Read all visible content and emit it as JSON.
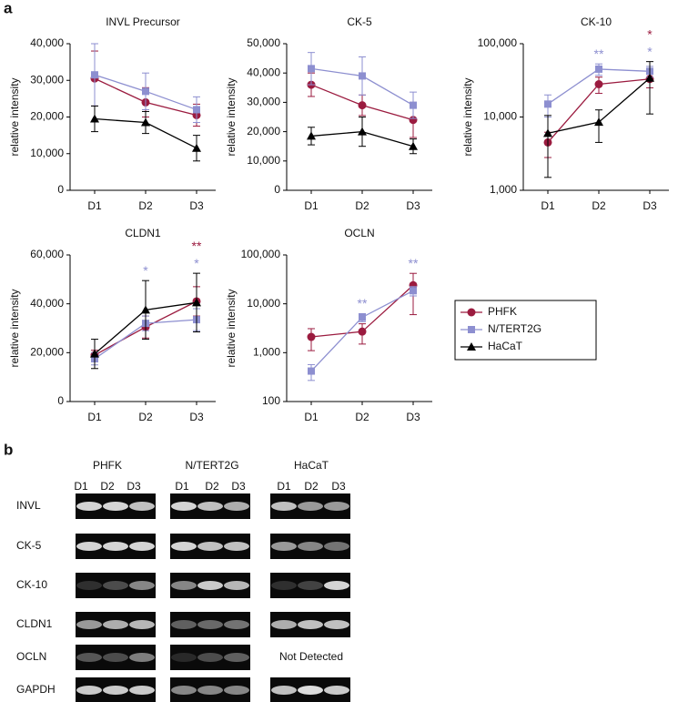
{
  "panel_labels": [
    "a",
    "b"
  ],
  "chart_data": [
    {
      "type": "line",
      "title": "INVL Precursor",
      "ylabel": "relative intensity",
      "categories": [
        "D1",
        "D2",
        "D3"
      ],
      "ylim": [
        0,
        40000
      ],
      "yticks": [
        0,
        {
          "value": 10000,
          "label": "10,000"
        },
        {
          "value": 20000,
          "label": "20,000"
        },
        {
          "value": 30000,
          "label": "30,000"
        },
        {
          "value": 40000,
          "label": "40,000"
        }
      ],
      "log_scale": false,
      "series": [
        {
          "name": "PHFK",
          "color": "#9b1b3f",
          "marker": "circle",
          "values": [
            30500,
            24000,
            20500
          ],
          "errors": [
            7500,
            4000,
            3000
          ]
        },
        {
          "name": "N/TERT2G",
          "color": "#8d8fd0",
          "marker": "square",
          "values": [
            31500,
            27000,
            22000
          ],
          "errors": [
            8500,
            5000,
            3500
          ]
        },
        {
          "name": "HaCaT",
          "color": "#000000",
          "marker": "triangle",
          "values": [
            19500,
            18500,
            11500
          ],
          "errors": [
            3500,
            3000,
            3500
          ]
        }
      ]
    },
    {
      "type": "line",
      "title": "CK-5",
      "ylabel": "relative intensity",
      "categories": [
        "D1",
        "D2",
        "D3"
      ],
      "ylim": [
        0,
        50000
      ],
      "yticks": [
        0,
        {
          "value": 10000,
          "label": "10,000"
        },
        {
          "value": 20000,
          "label": "20,000"
        },
        {
          "value": 30000,
          "label": "30,000"
        },
        {
          "value": 40000,
          "label": "40,000"
        },
        {
          "value": 50000,
          "label": "50,000"
        }
      ],
      "log_scale": false,
      "series": [
        {
          "name": "PHFK",
          "color": "#9b1b3f",
          "marker": "circle",
          "values": [
            36000,
            29000,
            24000
          ],
          "errors": [
            4000,
            3500,
            6000
          ]
        },
        {
          "name": "N/TERT2G",
          "color": "#8d8fd0",
          "marker": "square",
          "values": [
            41500,
            39000,
            29000
          ],
          "errors": [
            5500,
            6500,
            4500
          ]
        },
        {
          "name": "HaCaT",
          "color": "#000000",
          "marker": "triangle",
          "values": [
            18500,
            20000,
            15000
          ],
          "errors": [
            3000,
            5000,
            2500
          ]
        }
      ]
    },
    {
      "type": "line",
      "title": "CK-10",
      "ylabel": "relative intensity",
      "categories": [
        "D1",
        "D2",
        "D3"
      ],
      "ylim": [
        1000,
        100000
      ],
      "yticks": [
        {
          "value": 1000,
          "label": "1,000"
        },
        {
          "value": 10000,
          "label": "10,000"
        },
        {
          "value": 100000,
          "label": "100,000"
        }
      ],
      "log_scale": true,
      "series": [
        {
          "name": "PHFK",
          "color": "#9b1b3f",
          "marker": "circle",
          "values": [
            4500,
            28000,
            33000
          ],
          "errors": [
            1700,
            7000,
            8000
          ]
        },
        {
          "name": "N/TERT2G",
          "color": "#8d8fd0",
          "marker": "square",
          "values": [
            15000,
            45000,
            42000
          ],
          "errors": [
            5000,
            8000,
            7000
          ]
        },
        {
          "name": "HaCaT",
          "color": "#000000",
          "marker": "triangle",
          "values": [
            6000,
            8500,
            34000
          ],
          "errors": [
            4500,
            4000,
            23000
          ]
        }
      ],
      "annotations": [
        {
          "text": "**",
          "category": 1,
          "color": "#8d8fd0"
        },
        {
          "text": "*",
          "category": 2,
          "color": "#8d8fd0"
        },
        {
          "text": "*",
          "category": 2,
          "color": "#9b1b3f"
        }
      ]
    },
    {
      "type": "line",
      "title": "CLDN1",
      "ylabel": "relative intensity",
      "categories": [
        "D1",
        "D2",
        "D3"
      ],
      "ylim": [
        0,
        60000
      ],
      "yticks": [
        0,
        {
          "value": 20000,
          "label": "20,000"
        },
        {
          "value": 40000,
          "label": "40,000"
        },
        {
          "value": 60000,
          "label": "60,000"
        }
      ],
      "log_scale": false,
      "series": [
        {
          "name": "PHFK",
          "color": "#9b1b3f",
          "marker": "circle",
          "values": [
            19000,
            30500,
            41000
          ],
          "errors": [
            2000,
            4500,
            6000
          ]
        },
        {
          "name": "N/TERT2G",
          "color": "#8d8fd0",
          "marker": "square",
          "values": [
            17500,
            32000,
            33500
          ],
          "errors": [
            2500,
            3000,
            4500
          ]
        },
        {
          "name": "HaCaT",
          "color": "#000000",
          "marker": "triangle",
          "values": [
            19500,
            37500,
            40500
          ],
          "errors": [
            6000,
            12000,
            12000
          ]
        }
      ],
      "annotations": [
        {
          "text": "*",
          "category": 1,
          "color": "#8d8fd0"
        },
        {
          "text": "*",
          "category": 2,
          "color": "#8d8fd0"
        },
        {
          "text": "**",
          "category": 2,
          "color": "#9b1b3f"
        }
      ]
    },
    {
      "type": "line",
      "title": "OCLN",
      "ylabel": "relative intensity",
      "categories": [
        "D1",
        "D2",
        "D3"
      ],
      "ylim": [
        100,
        100000
      ],
      "yticks": [
        100,
        {
          "value": 1000,
          "label": "1,000"
        },
        {
          "value": 10000,
          "label": "10,000"
        },
        {
          "value": 100000,
          "label": "100,000"
        }
      ],
      "log_scale": true,
      "legend": "right",
      "series": [
        {
          "name": "PHFK",
          "color": "#9b1b3f",
          "marker": "circle",
          "values": [
            2100,
            2700,
            24000
          ],
          "errors": [
            1000,
            1200,
            18000
          ]
        },
        {
          "name": "N/TERT2G",
          "color": "#8d8fd0",
          "marker": "square",
          "values": [
            420,
            5300,
            18500
          ],
          "errors": [
            150,
            1000,
            4000
          ]
        },
        {
          "name": "HaCaT",
          "color": "#000000",
          "marker": "triangle",
          "values": [
            null,
            null,
            null
          ],
          "errors": [
            null,
            null,
            null
          ]
        }
      ],
      "annotations": [
        {
          "text": "**",
          "category": 1,
          "color": "#8d8fd0"
        },
        {
          "text": "**",
          "category": 2,
          "color": "#8d8fd0"
        }
      ]
    }
  ],
  "blot": {
    "groups": [
      {
        "name": "PHFK",
        "lanes": [
          "D1",
          "D2",
          "D3"
        ]
      },
      {
        "name": "N/TERT2G",
        "lanes": [
          "D1",
          "D2",
          "D3"
        ]
      },
      {
        "name": "HaCaT",
        "lanes": [
          "D1",
          "D2",
          "D3"
        ]
      }
    ],
    "rows": [
      "INVL",
      "CK-5",
      "CK-10",
      "CLDN1",
      "OCLN",
      "GAPDH"
    ],
    "not_detected": "Not Detected"
  }
}
